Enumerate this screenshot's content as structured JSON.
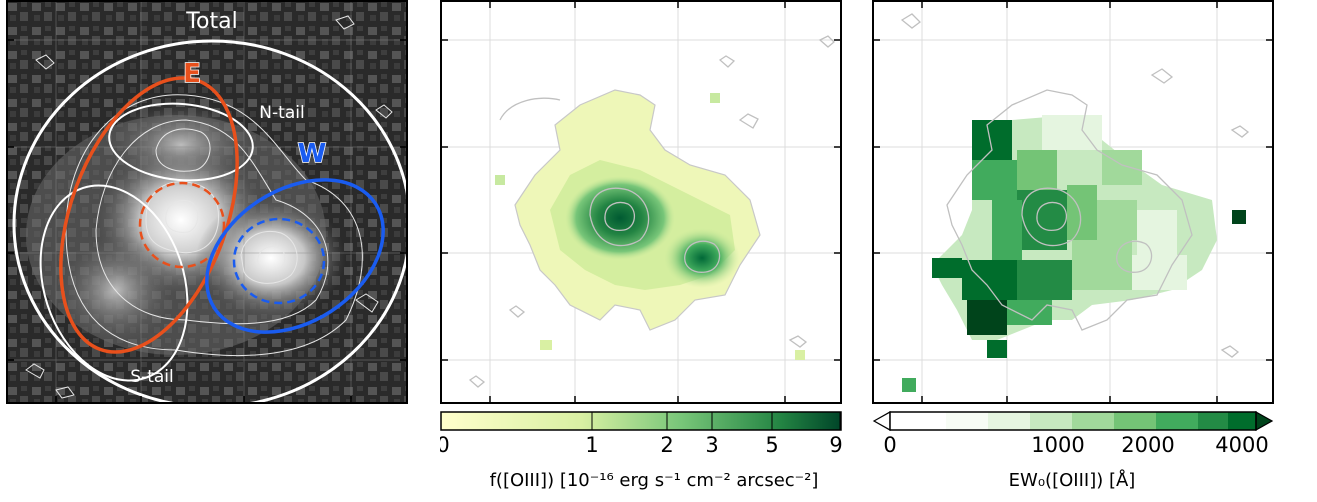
{
  "panels": {
    "left": {
      "title": "Total",
      "labels": {
        "E": "E",
        "W": "W",
        "n_tail": "N-tail",
        "s_tail": "S-tail"
      }
    },
    "middle": {
      "colorbar": {
        "ticks": [
          "0",
          "1",
          "2",
          "3",
          "5",
          "9"
        ],
        "label": "f([OIII]) [10⁻¹⁶ erg s⁻¹ cm⁻² arcsec⁻²]"
      }
    },
    "right": {
      "colorbar": {
        "ticks": [
          "0",
          "1000",
          "2000",
          "4000"
        ],
        "label": "EW₀([OIII]) [Å]"
      }
    }
  },
  "colors": {
    "E": "#e8501c",
    "W": "#1a5cf0",
    "cmap_low": "#ffffcc",
    "cmap_high": "#004529"
  }
}
